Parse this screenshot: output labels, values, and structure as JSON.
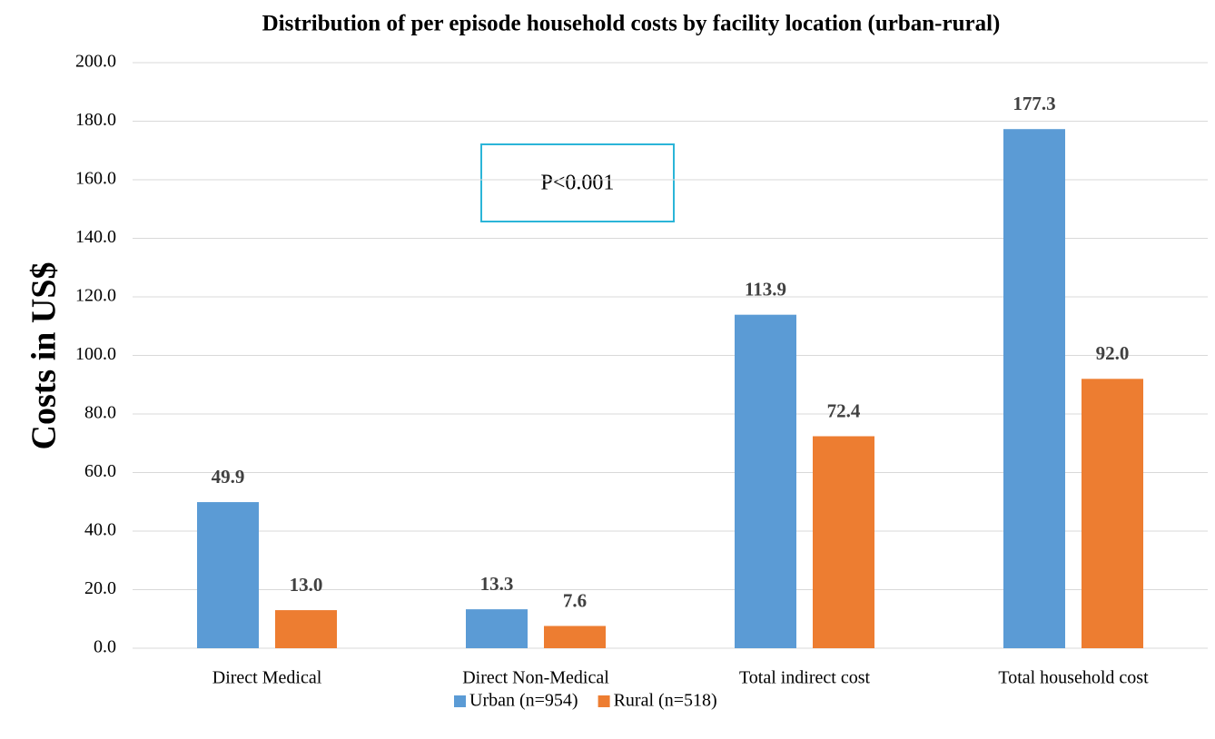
{
  "chart_data": {
    "type": "bar",
    "title": "Distribution of per episode household costs by facility location (urban-rural)",
    "y_label": "Costs in US$",
    "annotation": "P<0.001",
    "categories": [
      "Direct Medical",
      "Direct Non-Medical",
      "Total indirect cost",
      "Total household cost"
    ],
    "series": [
      {
        "name": "Urban (n=954)",
        "color": "#5b9bd5",
        "values": [
          49.9,
          13.3,
          113.9,
          177.3
        ]
      },
      {
        "name": "Rural (n=518)",
        "color": "#ed7d31",
        "values": [
          13,
          7.6,
          72.4,
          92
        ],
        "value_labels": [
          "13.0",
          "7.6",
          "72.4",
          "92.0"
        ]
      }
    ],
    "ylim": [
      0,
      200
    ],
    "yticks": [
      {
        "value": 0,
        "label": "0.0"
      },
      {
        "value": 20,
        "label": "20.0"
      },
      {
        "value": 40,
        "label": "40.0"
      },
      {
        "value": 60,
        "label": "60.0"
      },
      {
        "value": 80,
        "label": "80.0"
      },
      {
        "value": 100,
        "label": "100.0"
      },
      {
        "value": 120,
        "label": "120.0"
      },
      {
        "value": 140,
        "label": "140.0"
      },
      {
        "value": 160,
        "label": "160.0"
      },
      {
        "value": 180,
        "label": "180.0"
      },
      {
        "value": 200,
        "label": "200.0"
      }
    ],
    "grid": true,
    "legend": "bottom"
  }
}
